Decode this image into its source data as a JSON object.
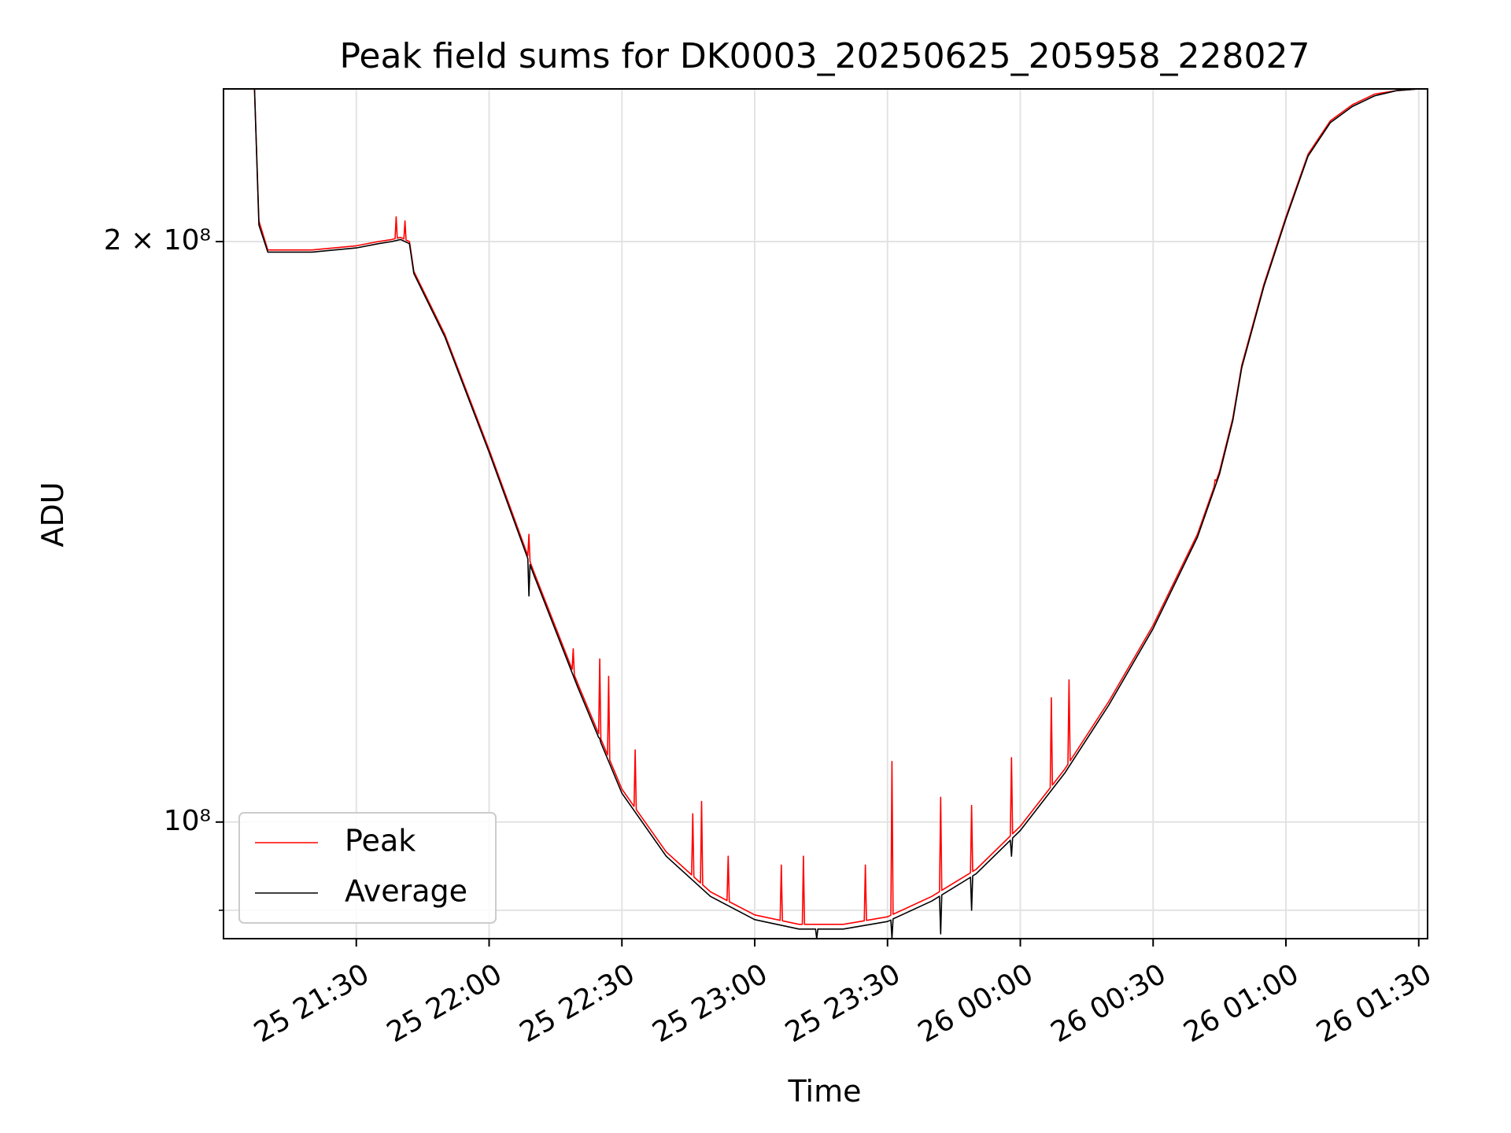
{
  "chart_data": {
    "type": "line",
    "title": "Peak field sums for DK0003_20250625_205958_228027",
    "xlabel": "Time",
    "ylabel": "ADU",
    "yscale": "log",
    "grid": true,
    "legend_position": "lower-left",
    "xlim": [
      "2025-06-25T21:00:00",
      "2025-06-26T01:32:00"
    ],
    "ylim": [
      87000000,
      240000000
    ],
    "x_ticks": [
      "2025-06-25T21:30:00",
      "2025-06-25T22:00:00",
      "2025-06-25T22:30:00",
      "2025-06-25T23:00:00",
      "2025-06-25T23:30:00",
      "2025-06-26T00:00:00",
      "2025-06-26T00:30:00",
      "2025-06-26T01:00:00",
      "2025-06-26T01:30:00"
    ],
    "x_tick_labels": [
      "25 21:30",
      "25 22:00",
      "25 22:30",
      "25 23:00",
      "25 23:30",
      "26 00:00",
      "26 00:30",
      "26 01:00",
      "26 01:30"
    ],
    "y_major_ticks": [
      100000000,
      200000000
    ],
    "y_minor_ticks": [
      90000000
    ],
    "y_tick_labels": [
      "10⁸",
      "2 × 10⁸"
    ],
    "series": [
      {
        "name": "Peak",
        "color": "#ff0000",
        "x": [
          "2025-06-25T21:07:00",
          "2025-06-25T21:08:00",
          "2025-06-25T21:10:00",
          "2025-06-25T21:20:00",
          "2025-06-25T21:30:00",
          "2025-06-25T21:35:00",
          "2025-06-25T21:38:00",
          "2025-06-25T21:40:00",
          "2025-06-25T21:42:00",
          "2025-06-25T21:43:00",
          "2025-06-25T21:50:00",
          "2025-06-25T22:00:00",
          "2025-06-25T22:10:00",
          "2025-06-25T22:20:00",
          "2025-06-25T22:30:00",
          "2025-06-25T22:40:00",
          "2025-06-25T22:50:00",
          "2025-06-25T23:00:00",
          "2025-06-25T23:10:00",
          "2025-06-25T23:20:00",
          "2025-06-25T23:30:00",
          "2025-06-25T23:40:00",
          "2025-06-25T23:50:00",
          "2025-06-26T00:00:00",
          "2025-06-26T00:10:00",
          "2025-06-26T00:20:00",
          "2025-06-26T00:30:00",
          "2025-06-26T00:40:00",
          "2025-06-26T00:45:00",
          "2025-06-26T00:48:00",
          "2025-06-26T00:50:00",
          "2025-06-26T00:55:00",
          "2025-06-26T01:00:00",
          "2025-06-26T01:05:00",
          "2025-06-26T01:10:00",
          "2025-06-26T01:15:00",
          "2025-06-26T01:20:00",
          "2025-06-26T01:25:00",
          "2025-06-26T01:30:00",
          "2025-06-26T01:32:00"
        ],
        "values": [
          240000000,
          205000000,
          198000000,
          198000000,
          199000000,
          200000000,
          200500000,
          201000000,
          200000000,
          193000000,
          179000000,
          156000000,
          135000000,
          118000000,
          104000000,
          96500000,
          92000000,
          89500000,
          88500000,
          88500000,
          89300000,
          91500000,
          94500000,
          99500000,
          106500000,
          115500000,
          126500000,
          141000000,
          152000000,
          162000000,
          172500000,
          190000000,
          206000000,
          222000000,
          231000000,
          235500000,
          238500000,
          239500000,
          240000000,
          240000000
        ],
        "spikes": [
          {
            "x": "2025-06-25T21:39:00",
            "value": 206000000
          },
          {
            "x": "2025-06-25T21:41:00",
            "value": 205000000
          },
          {
            "x": "2025-06-25T22:09:00",
            "value": 141000000
          },
          {
            "x": "2025-06-25T22:19:00",
            "value": 123000000
          },
          {
            "x": "2025-06-25T22:25:00",
            "value": 121500000
          },
          {
            "x": "2025-06-25T22:27:00",
            "value": 119000000
          },
          {
            "x": "2025-06-25T22:33:00",
            "value": 109000000
          },
          {
            "x": "2025-06-25T22:46:00",
            "value": 101000000
          },
          {
            "x": "2025-06-25T22:48:00",
            "value": 102500000
          },
          {
            "x": "2025-06-25T22:54:00",
            "value": 96000000
          },
          {
            "x": "2025-06-25T23:06:00",
            "value": 95000000
          },
          {
            "x": "2025-06-25T23:11:00",
            "value": 96000000
          },
          {
            "x": "2025-06-25T23:25:00",
            "value": 95000000
          },
          {
            "x": "2025-06-25T23:31:00",
            "value": 107500000
          },
          {
            "x": "2025-06-25T23:42:00",
            "value": 103000000
          },
          {
            "x": "2025-06-25T23:49:00",
            "value": 102000000
          },
          {
            "x": "2025-06-25T23:58:00",
            "value": 108000000
          },
          {
            "x": "2025-06-26T00:07:00",
            "value": 116000000
          },
          {
            "x": "2025-06-26T00:11:00",
            "value": 118500000
          },
          {
            "x": "2025-06-26T00:44:00",
            "value": 150500000
          }
        ]
      },
      {
        "name": "Average",
        "color": "#000000",
        "x": [
          "2025-06-25T21:07:00",
          "2025-06-25T21:08:00",
          "2025-06-25T21:10:00",
          "2025-06-25T21:20:00",
          "2025-06-25T21:30:00",
          "2025-06-25T21:35:00",
          "2025-06-25T21:38:00",
          "2025-06-25T21:40:00",
          "2025-06-25T21:42:00",
          "2025-06-25T21:43:00",
          "2025-06-25T21:50:00",
          "2025-06-25T22:00:00",
          "2025-06-25T22:10:00",
          "2025-06-25T22:20:00",
          "2025-06-25T22:30:00",
          "2025-06-25T22:40:00",
          "2025-06-25T22:50:00",
          "2025-06-25T23:00:00",
          "2025-06-25T23:10:00",
          "2025-06-25T23:20:00",
          "2025-06-25T23:30:00",
          "2025-06-25T23:40:00",
          "2025-06-25T23:50:00",
          "2025-06-26T00:00:00",
          "2025-06-26T00:10:00",
          "2025-06-26T00:20:00",
          "2025-06-26T00:30:00",
          "2025-06-26T00:40:00",
          "2025-06-26T00:45:00",
          "2025-06-26T00:48:00",
          "2025-06-26T00:50:00",
          "2025-06-26T00:55:00",
          "2025-06-26T01:00:00",
          "2025-06-26T01:05:00",
          "2025-06-26T01:10:00",
          "2025-06-26T01:15:00",
          "2025-06-26T01:20:00",
          "2025-06-26T01:25:00",
          "2025-06-26T01:30:00",
          "2025-06-26T01:32:00"
        ],
        "values": [
          240000000,
          204000000,
          197500000,
          197500000,
          198500000,
          199500000,
          200000000,
          200500000,
          199500000,
          192500000,
          178500000,
          155500000,
          134500000,
          117500000,
          103500000,
          96000000,
          91500000,
          89000000,
          88000000,
          88000000,
          88800000,
          91000000,
          94000000,
          99000000,
          106000000,
          115000000,
          126000000,
          140500000,
          151500000,
          161500000,
          172000000,
          189500000,
          205500000,
          221500000,
          230500000,
          235000000,
          238000000,
          239500000,
          240000000,
          240000000
        ],
        "dips": [
          {
            "x": "2025-06-25T22:09:00",
            "value": 131000000
          },
          {
            "x": "2025-06-25T22:25:00",
            "value": 110500000
          },
          {
            "x": "2025-06-25T23:14:00",
            "value": 87000000
          },
          {
            "x": "2025-06-25T23:31:00",
            "value": 87000000
          },
          {
            "x": "2025-06-25T23:42:00",
            "value": 87500000
          },
          {
            "x": "2025-06-25T23:49:00",
            "value": 90000000
          },
          {
            "x": "2025-06-25T23:58:00",
            "value": 96000000
          }
        ]
      }
    ]
  }
}
